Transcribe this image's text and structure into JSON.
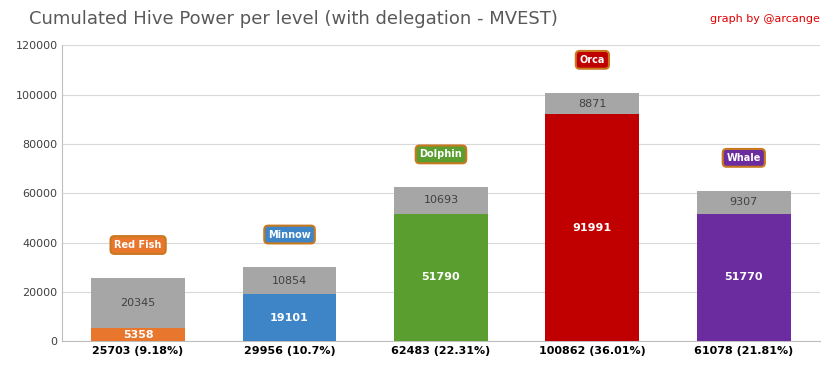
{
  "chart_data": {
    "type": "bar",
    "title": "Cumulated Hive Power per level (with delegation - MVEST)",
    "annotations": [
      "graph by @arcange"
    ],
    "badges": [
      "Red Fish",
      "Minnow",
      "Dolphin",
      "Orca",
      "Whale"
    ],
    "categories": [
      "25703 (9.18%)",
      "29956 (10.7%)",
      "62483 (22.31%)",
      "100862 (36.01%)",
      "61078 (21.81%)"
    ],
    "stacked": true,
    "data_labels": true,
    "grid": true,
    "series": [
      {
        "values": [
          5358,
          19101,
          51790,
          91991,
          51770
        ],
        "colors": [
          "#e8762c",
          "#3d85c6",
          "#5a9e2f",
          "#c00000",
          "#6a2c9e"
        ]
      },
      {
        "values": [
          20345,
          10854,
          10693,
          8871,
          9307
        ],
        "color": "#a6a6a6"
      }
    ],
    "ylim": [
      0,
      120000
    ],
    "yticks": [
      0,
      20000,
      40000,
      60000,
      80000,
      100000,
      120000
    ]
  }
}
